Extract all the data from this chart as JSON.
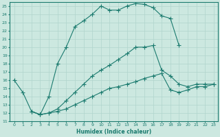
{
  "xlabel": "Humidex (Indice chaleur)",
  "bg_color": "#cce8e0",
  "grid_color": "#b0d4cc",
  "line_color": "#1a7a6e",
  "xlim": [
    -0.5,
    23.5
  ],
  "ylim": [
    11,
    25.5
  ],
  "xticks": [
    0,
    1,
    2,
    3,
    4,
    5,
    6,
    7,
    8,
    9,
    10,
    11,
    12,
    13,
    14,
    15,
    16,
    17,
    18,
    19,
    20,
    21,
    22,
    23
  ],
  "yticks": [
    11,
    12,
    13,
    14,
    15,
    16,
    17,
    18,
    19,
    20,
    21,
    22,
    23,
    24,
    25
  ],
  "line1_x": [
    0,
    1,
    2,
    3,
    4,
    5,
    6,
    7,
    8,
    9,
    10,
    11,
    12,
    13,
    14,
    15,
    16,
    17,
    18,
    19
  ],
  "line1_y": [
    16.0,
    14.5,
    12.2,
    11.8,
    14.0,
    18.0,
    20.0,
    22.5,
    23.2,
    24.0,
    25.0,
    24.5,
    24.5,
    25.0,
    25.3,
    25.2,
    24.8,
    23.8,
    23.5,
    20.2
  ],
  "line2_x": [
    2,
    3,
    4,
    5,
    6,
    7,
    8,
    9,
    10,
    11,
    12,
    13,
    14,
    15,
    16,
    17,
    18,
    19,
    20,
    21,
    22,
    23
  ],
  "line2_y": [
    12.2,
    11.8,
    12.0,
    12.5,
    13.5,
    14.5,
    15.5,
    16.5,
    17.2,
    17.8,
    18.5,
    19.2,
    20.0,
    20.0,
    20.2,
    17.2,
    16.5,
    15.5,
    15.2,
    15.5,
    15.5,
    15.5
  ],
  "line3_x": [
    2,
    3,
    4,
    5,
    6,
    7,
    8,
    9,
    10,
    11,
    12,
    13,
    14,
    15,
    16,
    17,
    18,
    19,
    20,
    21,
    22,
    23
  ],
  "line3_y": [
    12.2,
    11.8,
    12.0,
    12.2,
    12.5,
    13.0,
    13.5,
    14.0,
    14.5,
    15.0,
    15.2,
    15.5,
    15.8,
    16.2,
    16.5,
    16.8,
    14.8,
    14.5,
    14.8,
    15.2,
    15.2,
    15.5
  ],
  "figsize": [
    3.2,
    2.0
  ],
  "dpi": 100
}
